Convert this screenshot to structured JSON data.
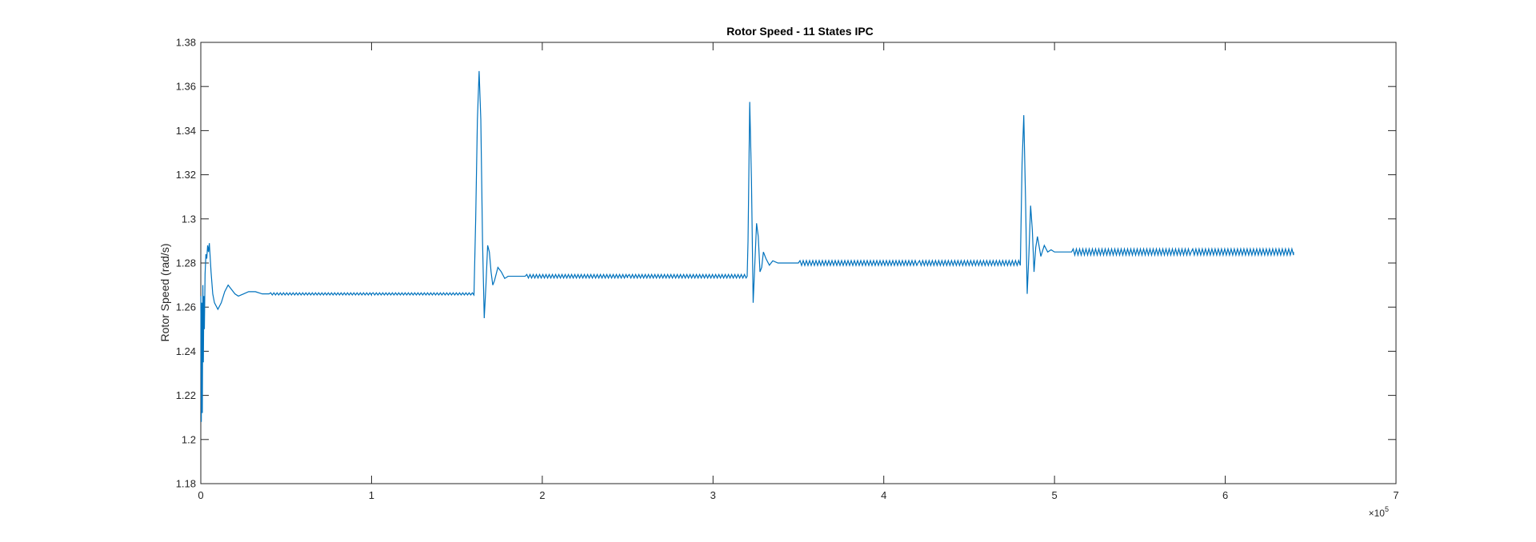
{
  "chart_data": {
    "type": "line",
    "title": "Rotor Speed - 11 States IPC",
    "xlabel": "",
    "ylabel": "Rotor Speed (rad/s)",
    "xlim": [
      0,
      7
    ],
    "ylim": [
      1.18,
      1.38
    ],
    "x_exponent_label": "×10",
    "x_exponent_power": "5",
    "xticks": [
      0,
      1,
      2,
      3,
      4,
      5,
      6,
      7
    ],
    "xtick_labels": [
      "0",
      "1",
      "2",
      "3",
      "4",
      "5",
      "6",
      "7"
    ],
    "yticks": [
      1.18,
      1.2,
      1.22,
      1.24,
      1.26,
      1.28,
      1.3,
      1.32,
      1.34,
      1.36,
      1.38
    ],
    "ytick_labels": [
      "1.18",
      "1.2",
      "1.22",
      "1.24",
      "1.26",
      "1.28",
      "1.3",
      "1.32",
      "1.34",
      "1.36",
      "1.38"
    ],
    "grid": false,
    "box": true,
    "series": [
      {
        "color": "#0072BD",
        "x": [
          0.0,
          0.003,
          0.006,
          0.009,
          0.012,
          0.015,
          0.018,
          0.021,
          0.025,
          0.03,
          0.035,
          0.04,
          0.045,
          0.05,
          0.06,
          0.07,
          0.08,
          0.1,
          0.12,
          0.14,
          0.16,
          0.18,
          0.2,
          0.22,
          0.25,
          0.28,
          0.32,
          0.36,
          0.4,
          1.0,
          1.6,
          1.61,
          1.62,
          1.63,
          1.64,
          1.65,
          1.66,
          1.67,
          1.68,
          1.69,
          1.7,
          1.71,
          1.72,
          1.74,
          1.76,
          1.78,
          1.8,
          1.85,
          1.9,
          2.5,
          3.2,
          3.205,
          3.215,
          3.225,
          3.235,
          3.245,
          3.255,
          3.265,
          3.275,
          3.285,
          3.295,
          3.31,
          3.33,
          3.35,
          3.38,
          3.42,
          3.5,
          4.2,
          4.8,
          4.81,
          4.82,
          4.83,
          4.84,
          4.85,
          4.86,
          4.87,
          4.88,
          4.89,
          4.9,
          4.92,
          4.94,
          4.96,
          4.98,
          5.0,
          5.05,
          5.1,
          5.8,
          6.4
        ],
        "y": [
          1.265,
          1.208,
          1.262,
          1.212,
          1.27,
          1.235,
          1.265,
          1.25,
          1.275,
          1.284,
          1.282,
          1.288,
          1.285,
          1.289,
          1.276,
          1.266,
          1.262,
          1.259,
          1.262,
          1.267,
          1.27,
          1.268,
          1.266,
          1.265,
          1.266,
          1.267,
          1.267,
          1.266,
          1.266,
          1.266,
          1.266,
          1.3,
          1.345,
          1.367,
          1.345,
          1.29,
          1.255,
          1.27,
          1.288,
          1.285,
          1.276,
          1.27,
          1.272,
          1.278,
          1.276,
          1.273,
          1.274,
          1.274,
          1.274,
          1.274,
          1.274,
          1.29,
          1.353,
          1.318,
          1.262,
          1.28,
          1.298,
          1.292,
          1.276,
          1.278,
          1.285,
          1.282,
          1.279,
          1.281,
          1.28,
          1.28,
          1.28,
          1.28,
          1.28,
          1.325,
          1.347,
          1.31,
          1.266,
          1.284,
          1.306,
          1.295,
          1.276,
          1.287,
          1.292,
          1.283,
          1.288,
          1.285,
          1.286,
          1.285,
          1.285,
          1.285,
          1.285,
          1.285
        ],
        "ripple_amplitude": [
          {
            "from": 0.4,
            "to": 1.6,
            "amplitude": 0.0005
          },
          {
            "from": 1.9,
            "to": 3.2,
            "amplitude": 0.0008
          },
          {
            "from": 3.5,
            "to": 4.8,
            "amplitude": 0.0011
          },
          {
            "from": 5.1,
            "to": 6.4,
            "amplitude": 0.0014
          }
        ]
      }
    ]
  }
}
